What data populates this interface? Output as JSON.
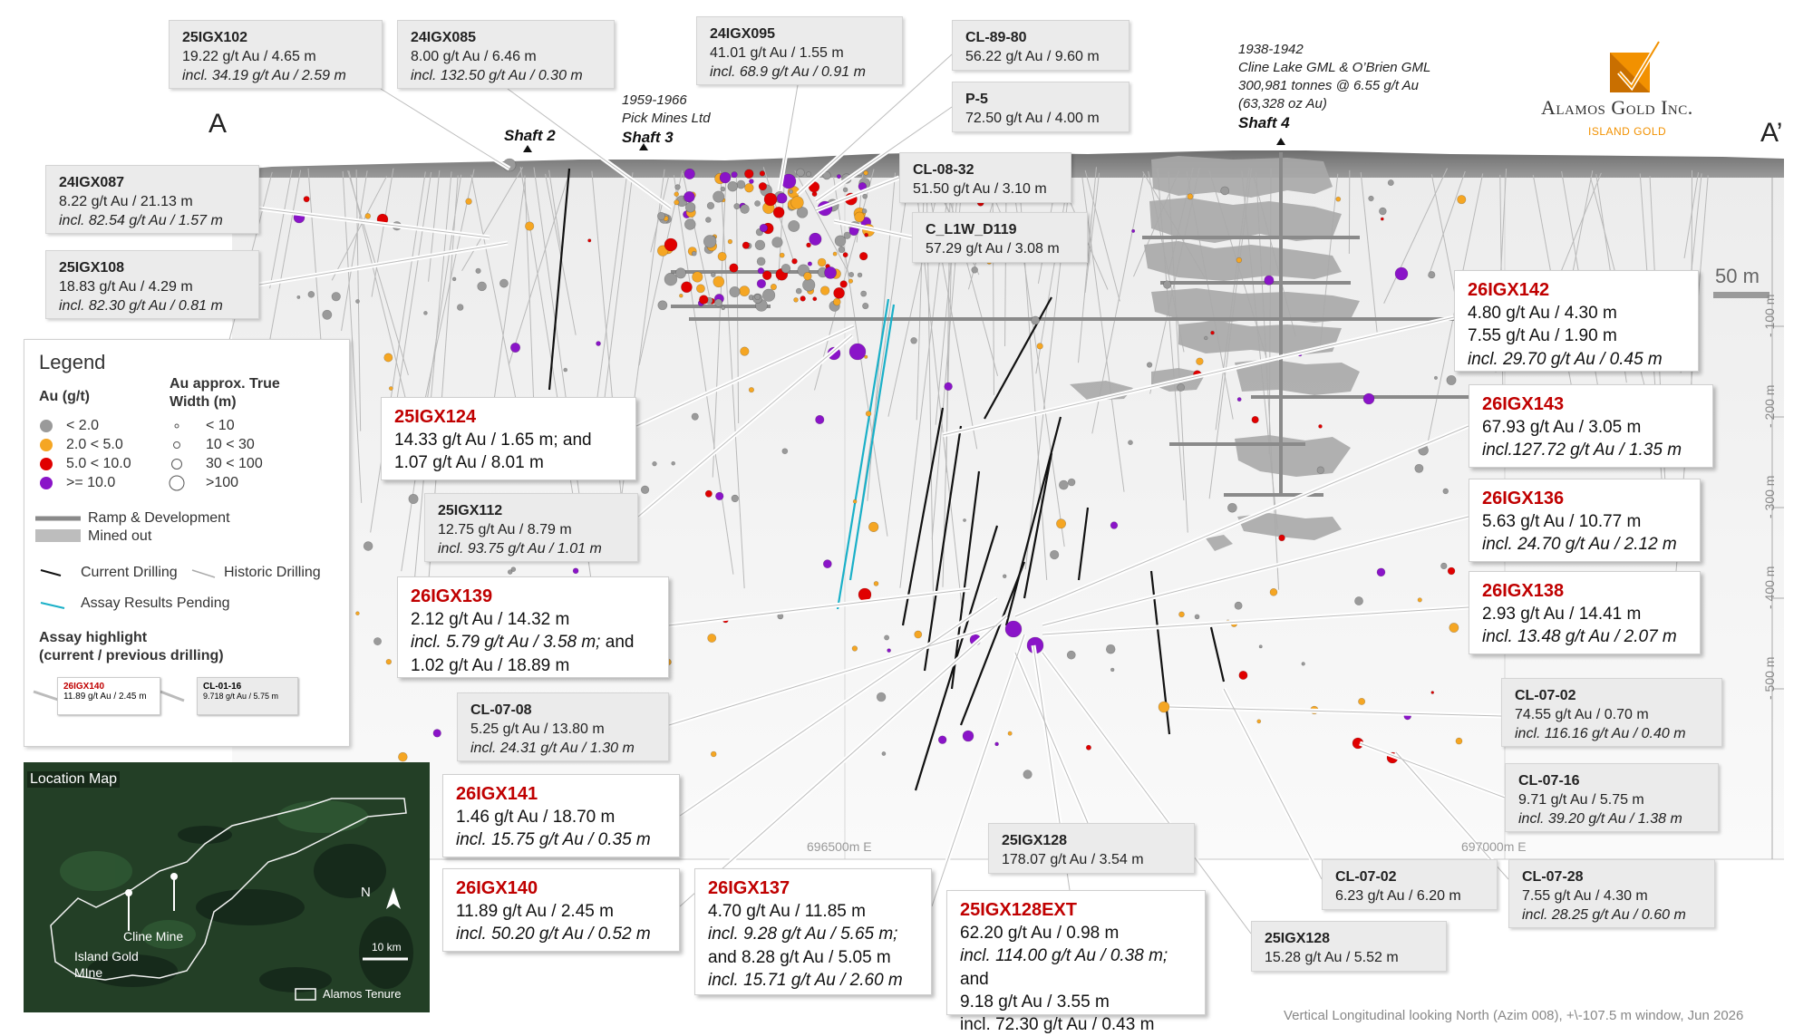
{
  "section_ends": {
    "a": "A",
    "a_prime": "A’"
  },
  "brand": {
    "name": "Alamos Gold Inc.",
    "sub": "ISLAND GOLD"
  },
  "shafts": {
    "shaft2": "Shaft 2",
    "shaft3_years": "1959-1966",
    "shaft3_company": "Pick Mines Ltd",
    "shaft3": "Shaft 3",
    "shaft4_years": "1938-1942",
    "shaft4_company": "Cline Lake GML & O’Brien GML",
    "shaft4_tonnes": "300,981 tonnes @ 6.55 g/t Au",
    "shaft4_oz": "(63,328 oz Au)",
    "shaft4": "Shaft 4"
  },
  "scale_bar": "50 m",
  "depth_labels": [
    "- 100 m",
    "- 200 m",
    "- 300 m",
    "- 400 m",
    "- 500 m"
  ],
  "easting_labels": [
    "696500m E",
    "697000m E"
  ],
  "footer": "Vertical Longitudinal looking North (Azim 008), +\\-107.5 m window, Jun 2026",
  "callouts": {
    "c25IGX102": {
      "name": "25IGX102",
      "l1": "19.22 g/t Au / 4.65 m",
      "l2": "incl. 34.19 g/t Au / 2.59 m"
    },
    "c24IGX085": {
      "name": "24IGX085",
      "l1": "8.00 g/t Au / 6.46 m",
      "l2": "incl. 132.50 g/t Au / 0.30 m"
    },
    "c24IGX095": {
      "name": "24IGX095",
      "l1": "41.01 g/t Au / 1.55 m",
      "l2": "incl. 68.9 g/t Au / 0.91 m"
    },
    "cCL8980": {
      "name": "CL-89-80",
      "l1": "56.22 g/t Au / 9.60 m"
    },
    "cP5": {
      "name": "P-5",
      "l1": "72.50 g/t Au / 4.00 m"
    },
    "cCL0832": {
      "name": "CL-08-32",
      "l1": "51.50 g/t Au / 3.10 m"
    },
    "cL1W": {
      "name": "C_L1W_D119",
      "l1": "57.29 g/t Au / 3.08 m"
    },
    "c24IGX087": {
      "name": "24IGX087",
      "l1": "8.22 g/t Au / 21.13 m",
      "l2": "incl. 82.54 g/t Au / 1.57 m"
    },
    "c25IGX108": {
      "name": "25IGX108",
      "l1": "18.83 g/t Au / 4.29 m",
      "l2": "incl. 82.30 g/t Au / 0.81 m"
    },
    "c25IGX124": {
      "name": "25IGX124",
      "l1": "14.33 g/t Au / 1.65 m; and",
      "l2": "1.07 g/t Au / 8.01 m"
    },
    "c25IGX112": {
      "name": "25IGX112",
      "l1": "12.75 g/t Au / 8.79 m",
      "l2": "incl. 93.75 g/t Au / 1.01 m"
    },
    "c26IGX139": {
      "name": "26IGX139",
      "l1": "2.12 g/t Au / 14.32 m",
      "l2": "incl. 5.79 g/t Au / 3.58 m;",
      "l2b": " and",
      "l3": "1.02 g/t Au / 18.89 m"
    },
    "cCL0708": {
      "name": "CL-07-08",
      "l1": "5.25 g/t Au / 13.80 m",
      "l2": "incl. 24.31 g/t Au / 1.30 m"
    },
    "c26IGX141": {
      "name": "26IGX141",
      "l1": "1.46 g/t Au / 18.70 m",
      "l2": "incl. 15.75 g/t Au / 0.35 m"
    },
    "c26IGX140": {
      "name": "26IGX140",
      "l1": "11.89 g/t Au / 2.45 m",
      "l2": "incl. 50.20 g/t Au / 0.52 m"
    },
    "c26IGX137": {
      "name": "26IGX137",
      "l1": "4.70 g/t Au / 11.85 m",
      "l2": "incl. 9.28 g/t Au / 5.65 m;",
      "l3": "and 8.28 g/t Au / 5.05 m",
      "l4": "incl. 15.71 g/t Au / 2.60 m"
    },
    "c25IGX128a": {
      "name": "25IGX128",
      "l1": "178.07 g/t Au / 3.54 m"
    },
    "c25IGX128EXT": {
      "name": "25IGX128EXT",
      "l1": "62.20 g/t Au / 0.98 m",
      "l2": "incl. 114.00 g/t Au / 0.38 m;",
      "l2b": " and",
      "l3": "9.18 g/t Au / 3.55 m",
      "l4": "incl. 72.30 g/t Au / 0.43 m"
    },
    "c25IGX128b": {
      "name": "25IGX128",
      "l1": "15.28 g/t Au / 5.52 m"
    },
    "cCL0702a": {
      "name": "CL-07-02",
      "l1": "6.23 g/t Au / 6.20 m"
    },
    "cCL0728": {
      "name": "CL-07-28",
      "l1": "7.55 g/t Au / 4.30 m",
      "l2": "incl. 28.25 g/t Au / 0.60 m"
    },
    "cCL0716": {
      "name": "CL-07-16",
      "l1": "9.71 g/t Au / 5.75 m",
      "l2": "incl. 39.20 g/t Au / 1.38 m"
    },
    "cCL0702b": {
      "name": "CL-07-02",
      "l1": "74.55 g/t Au / 0.70 m",
      "l2": "incl. 116.16 g/t Au / 0.40 m"
    },
    "c26IGX138": {
      "name": "26IGX138",
      "l1": "2.93 g/t Au / 14.41 m",
      "l2": "incl. 13.48 g/t Au / 2.07 m"
    },
    "c26IGX136": {
      "name": "26IGX136",
      "l1": "5.63 g/t Au / 10.77 m",
      "l2": "incl. 24.70 g/t Au / 2.12 m"
    },
    "c26IGX143": {
      "name": "26IGX143",
      "l1": "67.93 g/t Au / 3.05 m",
      "l2": "incl.127.72 g/t Au / 1.35 m"
    },
    "c26IGX142": {
      "name": "26IGX142",
      "l1": "4.80 g/t Au / 4.30 m",
      "l2": "7.55 g/t Au / 1.90 m",
      "l3": "incl. 29.70 g/t Au / 0.45 m"
    }
  },
  "legend": {
    "title": "Legend",
    "au_title": "Au (g/t)",
    "au_items": [
      "< 2.0",
      "2.0 < 5.0",
      "5.0 < 10.0",
      ">= 10.0"
    ],
    "width_title_1": "Au approx. True",
    "width_title_2": "Width (m)",
    "width_items": [
      "< 10",
      "10 < 30",
      "30 < 100",
      ">100"
    ],
    "ramp": "Ramp & Development",
    "mined": "Mined out",
    "current": "Current Drilling",
    "historic": "Historic Drilling",
    "pending": "Assay Results Pending",
    "highlight_1": "Assay highlight",
    "highlight_2": "(current / previous drilling)",
    "sample_cur_name": "26IGX140",
    "sample_cur_value": "11.89 g/t Au / 2.45 m",
    "sample_prev_name": "CL-01-16",
    "sample_prev_value": "9.718 g/t Au / 5.75 m",
    "colors": {
      "lt2": "#9a9a9a",
      "2to5": "#f5a623",
      "5to10": "#e00000",
      "gte10": "#8a14c8"
    }
  },
  "location_map": {
    "title": "Location Map",
    "cline": "Cline Mine",
    "island_1": "Island Gold",
    "island_2": "MIne",
    "north": "N",
    "scale": "10 km",
    "tenure": "Alamos Tenure"
  },
  "colors": {
    "brand_orange": "#f29100",
    "highlight_red": "#c00000"
  }
}
